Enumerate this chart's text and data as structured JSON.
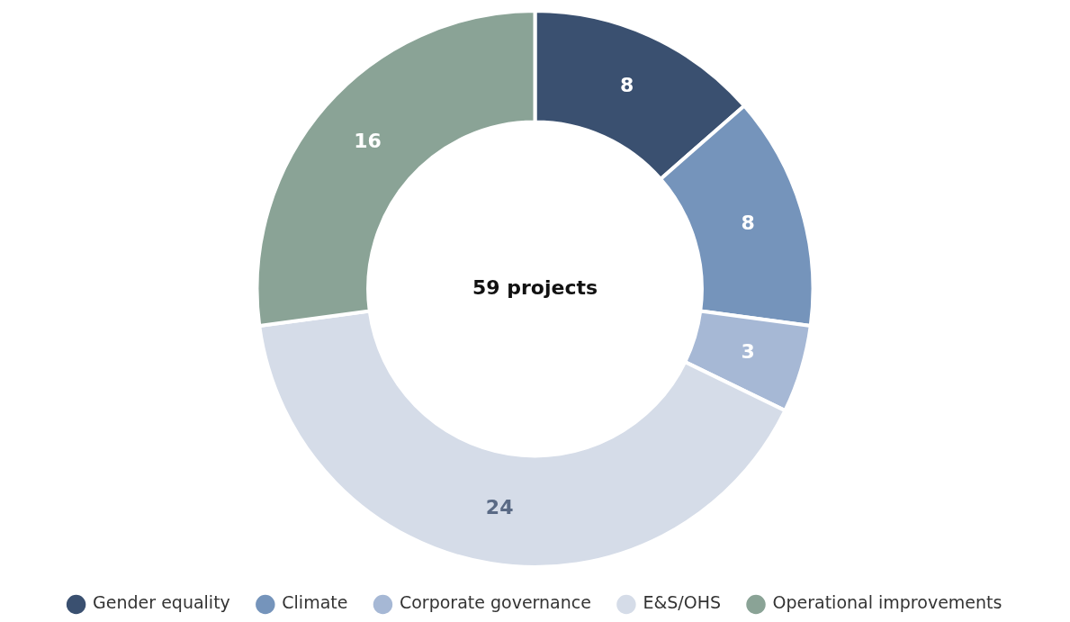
{
  "chart_data": {
    "type": "donut",
    "categories": [
      "Gender equality",
      "Climate",
      "Corporate governance",
      "E&S/OHS",
      "Operational improvements"
    ],
    "values": [
      8,
      8,
      3,
      24,
      16
    ],
    "colors": [
      "#3a5070",
      "#7594bb",
      "#a6b8d5",
      "#d5dce8",
      "#8aa396"
    ],
    "data_labels": true,
    "legend": "bottom",
    "annotations": [
      "59 projects"
    ]
  }
}
